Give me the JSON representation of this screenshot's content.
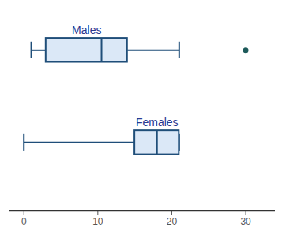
{
  "chart_data": {
    "type": "box",
    "categories": [
      "Males",
      "Females"
    ],
    "series": [
      {
        "name": "Males",
        "whislo": 1,
        "q1": 3,
        "med": 10.5,
        "q3": 14,
        "whishi": 21,
        "fliers": [
          30
        ]
      },
      {
        "name": "Females",
        "whislo": 0,
        "q1": 15,
        "med": 18,
        "q3": 21,
        "whishi": 21,
        "fliers": []
      }
    ],
    "color": "#dbe8f7",
    "xlim": [
      -2,
      34
    ],
    "xticks": [
      0,
      10,
      20,
      30
    ],
    "tick_labels": "x",
    "grid": false
  }
}
